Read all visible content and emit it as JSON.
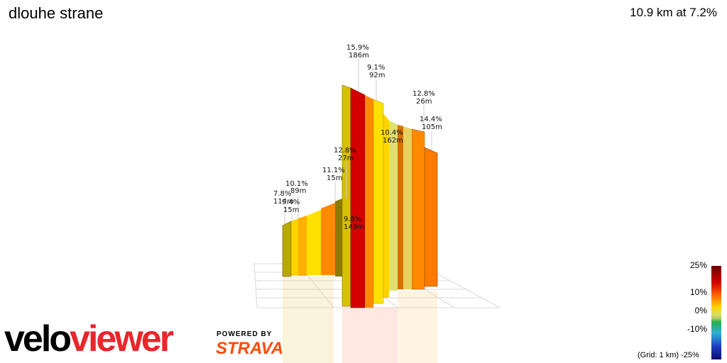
{
  "header": {
    "title": "dlouhe strane",
    "summary": "10.9 km at 7.2%"
  },
  "chart_data": {
    "type": "area",
    "title": "dlouhe strane",
    "subtitle": "10.9 km at 7.2%",
    "segments": [
      {
        "grade": "7.8%",
        "length": "114m",
        "color": "#b8b000"
      },
      {
        "grade": "9.4%",
        "length": "15m",
        "color": "#ffd400"
      },
      {
        "grade": "10.1%",
        "length": "89m",
        "color": "#ffa000"
      },
      {
        "grade": "11.1%",
        "length": "15m",
        "color": "#ff8c00"
      },
      {
        "grade": "12.8%",
        "length": "27m",
        "color": "#e8c000"
      },
      {
        "grade": "9.8%",
        "length": "149m",
        "color": "#ffcc00"
      },
      {
        "grade": "15.9%",
        "length": "186m",
        "color": "#d40000"
      },
      {
        "grade": "9.1%",
        "length": "92m",
        "color": "#ffd400"
      },
      {
        "grade": "10.4%",
        "length": "162m",
        "color": "#e0e060"
      },
      {
        "grade": "12.8%",
        "length": "26m",
        "color": "#e87000"
      },
      {
        "grade": "14.4%",
        "length": "105m",
        "color": "#ff7a00"
      }
    ],
    "legend": {
      "ticks": [
        "25%",
        "10%",
        "0%",
        "-10%",
        "-25%"
      ],
      "grid_note": "(Grid: 1 km)"
    }
  },
  "branding": {
    "logo_part1": "velo",
    "logo_part2": "viewer",
    "powered_by": "POWERED BY",
    "strava": "STRAVA"
  }
}
